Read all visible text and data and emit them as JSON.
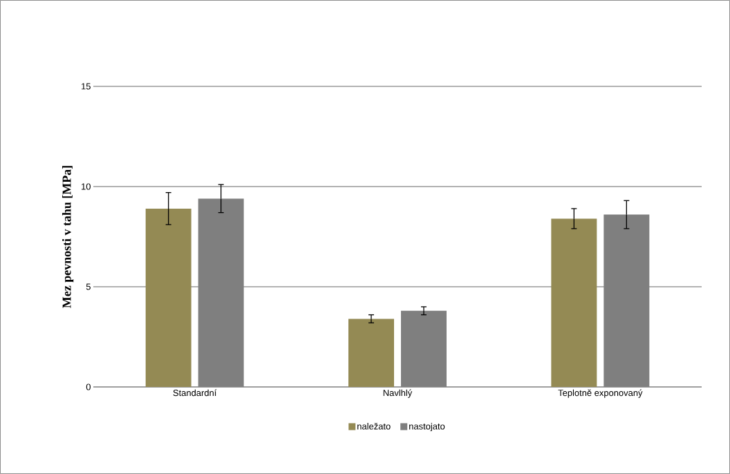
{
  "chart_data": {
    "type": "bar",
    "ylabel": "Mez pevnosti v tahu [MPa]",
    "categories": [
      "Standardní",
      "Navlhlý",
      "Teplotně exponovaný"
    ],
    "series": [
      {
        "name": "naležato",
        "color": "#948a54",
        "values": [
          8.9,
          3.4,
          8.4
        ],
        "errors": [
          0.8,
          0.2,
          0.5
        ]
      },
      {
        "name": "nastojato",
        "color": "#7f7f7f",
        "values": [
          9.4,
          3.8,
          8.6
        ],
        "errors": [
          0.7,
          0.2,
          0.7
        ]
      }
    ],
    "ylim": [
      0,
      15
    ],
    "yticks": [
      0,
      5,
      10,
      15
    ],
    "grid": "y",
    "legend": "bottom"
  }
}
